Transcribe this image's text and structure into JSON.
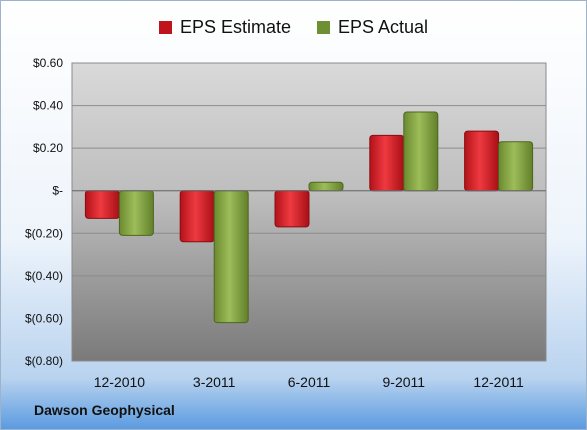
{
  "chart_data": {
    "type": "bar",
    "categories": [
      "12-2010",
      "3-2011",
      "6-2011",
      "9-2011",
      "12-2011"
    ],
    "series": [
      {
        "name": "EPS Estimate",
        "color": "#c0141c",
        "values": [
          -0.13,
          -0.24,
          -0.17,
          0.26,
          0.28
        ]
      },
      {
        "name": "EPS Actual",
        "color": "#6f8f33",
        "values": [
          -0.21,
          -0.62,
          0.04,
          0.37,
          0.23
        ]
      }
    ],
    "ylim": [
      -0.8,
      0.6
    ],
    "yticks": [
      0.6,
      0.4,
      0.2,
      0,
      -0.2,
      -0.4,
      -0.6,
      -0.8
    ],
    "ytick_labels": [
      "$0.60",
      "$0.40",
      "$0.20",
      "$-",
      "$(0.20)",
      "$(0.40)",
      "$(0.60)",
      "$(0.80)"
    ],
    "grid": true,
    "legend_position": "top"
  },
  "footer": {
    "company": "Dawson Geophysical"
  }
}
